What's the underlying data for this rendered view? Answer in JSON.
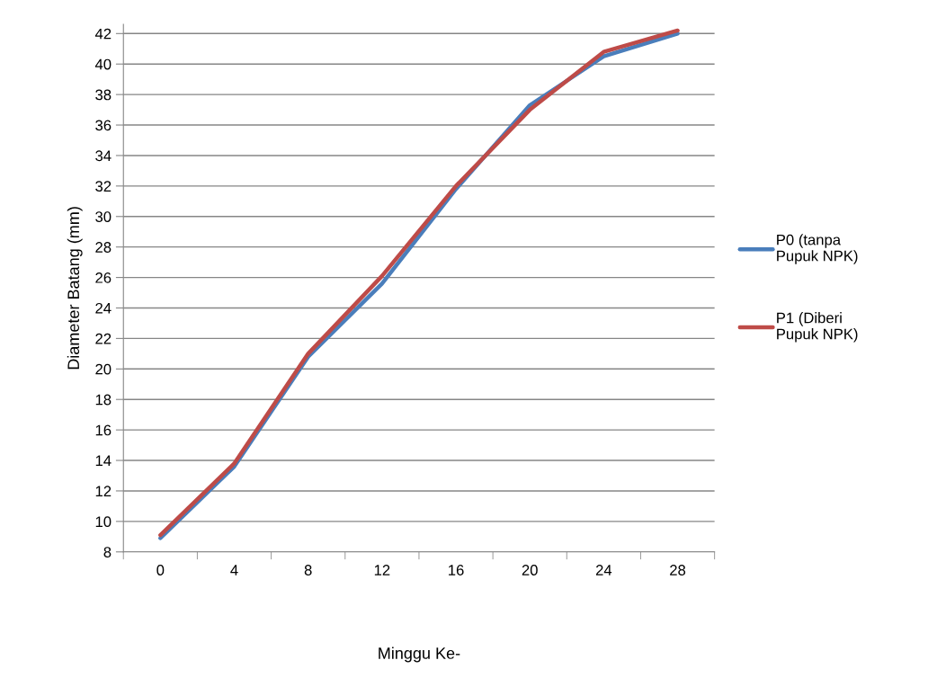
{
  "chart_data": {
    "type": "line",
    "xlabel": "Minggu Ke-",
    "ylabel": "Diameter Batang (mm)",
    "categories": [
      "0",
      "4",
      "8",
      "12",
      "16",
      "20",
      "24",
      "28"
    ],
    "series": [
      {
        "name": "P0 (tanpa Pupuk NPK)",
        "color": "#4a7ebb",
        "values": [
          8.9,
          13.6,
          20.8,
          25.6,
          31.8,
          37.3,
          40.5,
          42.0
        ]
      },
      {
        "name": "P1 (Diberi Pupuk NPK)",
        "color": "#be4b48",
        "values": [
          9.1,
          13.8,
          21.0,
          26.1,
          32.0,
          37.0,
          40.8,
          42.2
        ]
      }
    ],
    "ylim": [
      8,
      42.6
    ],
    "yticks": [
      8,
      10,
      12,
      14,
      16,
      18,
      20,
      22,
      24,
      26,
      28,
      30,
      32,
      34,
      36,
      38,
      40,
      42
    ],
    "grid": "y",
    "legend": "right",
    "marker": "none",
    "line_style": "solid"
  }
}
